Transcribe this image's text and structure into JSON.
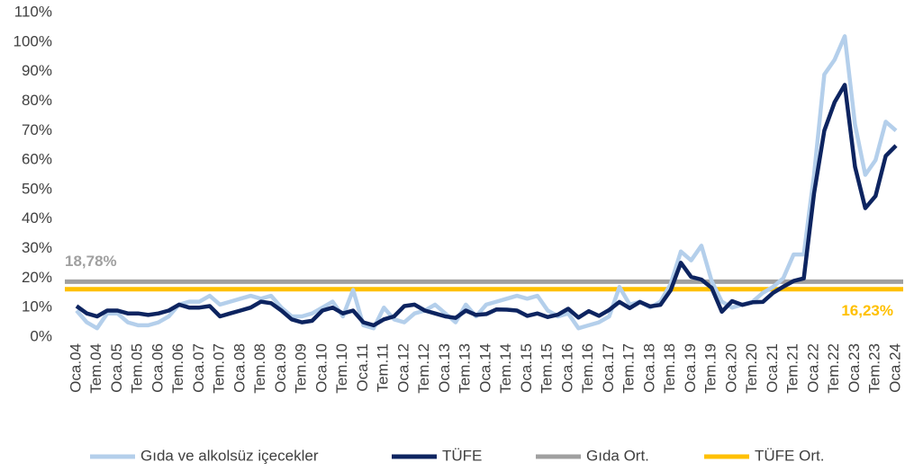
{
  "chart_data": {
    "type": "line",
    "categories": [
      "Oca.04",
      null,
      "Tem.04",
      null,
      "Oca.05",
      null,
      "Tem.05",
      null,
      "Oca.06",
      null,
      "Tem.06",
      null,
      "Oca.07",
      null,
      "Tem.07",
      null,
      "Oca.08",
      null,
      "Tem.08",
      null,
      "Oca.09",
      null,
      "Tem.09",
      null,
      "Oca.10",
      null,
      "Tem.10",
      null,
      "Oca.11",
      null,
      "Tem.11",
      null,
      "Oca.12",
      null,
      "Tem.12",
      null,
      "Oca.13",
      null,
      "Tem.13",
      null,
      "Oca.14",
      null,
      "Tem.14",
      null,
      "Oca.15",
      null,
      "Tem.15",
      null,
      "Oca.16",
      null,
      "Tem.16",
      null,
      "Oca.17",
      null,
      "Tem.17",
      null,
      "Oca.18",
      null,
      "Tem.18",
      null,
      "Oca.19",
      null,
      "Tem.19",
      null,
      "Oca.20",
      null,
      "Tem.20",
      null,
      "Oca.21",
      null,
      "Tem.21",
      null,
      "Oca.22",
      null,
      "Tem.22",
      null,
      "Oca.23",
      null,
      "Tem.23",
      null,
      "Oca.24"
    ],
    "series": [
      {
        "name": "Gıda ve alkolsüz içecekler",
        "color": "#b4cfeb",
        "values": [
          9,
          5,
          3,
          8,
          8,
          5,
          4,
          4,
          5,
          7,
          11,
          12,
          12,
          14,
          11,
          12,
          13,
          14,
          13,
          14,
          10,
          7,
          7,
          8,
          10,
          12,
          7,
          16,
          4,
          3,
          10,
          6,
          5,
          8,
          9,
          11,
          8,
          5,
          11,
          7,
          11,
          12,
          13,
          14,
          13,
          14,
          9,
          7,
          8,
          3,
          4,
          5,
          7,
          17,
          11,
          12,
          10,
          12,
          18,
          29,
          26,
          31,
          19,
          12,
          10,
          11,
          12,
          15,
          17,
          20,
          28,
          28,
          55,
          89,
          94,
          102,
          72,
          55,
          60,
          73,
          70
        ]
      },
      {
        "name": "TÜFE",
        "color": "#0d2460",
        "values": [
          10.5,
          8,
          7,
          9,
          9,
          8,
          8,
          7.5,
          8,
          9,
          11,
          10,
          10,
          10.5,
          7,
          8,
          9,
          10,
          12,
          11.5,
          9,
          6,
          5,
          5.5,
          9,
          10,
          8,
          9,
          5,
          4,
          6,
          7,
          10.5,
          11,
          9,
          8,
          7,
          6.5,
          9,
          7.5,
          7.8,
          9.4,
          9.3,
          9,
          7.2,
          8,
          6.8,
          7.6,
          9.6,
          6.6,
          8.8,
          7.2,
          9.2,
          11.9,
          9.8,
          11.9,
          10.4,
          10.9,
          15.9,
          25.2,
          20.4,
          19.5,
          16.7,
          8.6,
          12.2,
          10.9,
          11.8,
          11.9,
          15,
          17.1,
          19,
          19.9,
          48.7,
          70,
          79.6,
          85.5,
          57.7,
          43.7,
          47.8,
          61.4,
          64.9
        ]
      }
    ],
    "reference_lines": [
      {
        "name": "Gıda Ort.",
        "color": "#a0a0a0",
        "value": 18.78,
        "label": "18,78%"
      },
      {
        "name": "TÜFE Ort.",
        "color": "#ffc000",
        "value": 16.23,
        "label": "16,23%"
      }
    ],
    "ylim": [
      0,
      110
    ],
    "yticks": [
      {
        "value": 0,
        "label": "0%"
      },
      {
        "value": 10,
        "label": "10%"
      },
      {
        "value": 20,
        "label": "20%"
      },
      {
        "value": 30,
        "label": "30%"
      },
      {
        "value": 40,
        "label": "40%"
      },
      {
        "value": 50,
        "label": "50%"
      },
      {
        "value": 60,
        "label": "60%"
      },
      {
        "value": 70,
        "label": "70%"
      },
      {
        "value": 80,
        "label": "80%"
      },
      {
        "value": 90,
        "label": "90%"
      },
      {
        "value": 100,
        "label": "100%"
      },
      {
        "value": 110,
        "label": "110%"
      }
    ],
    "grid": false,
    "legend": "bottom"
  }
}
